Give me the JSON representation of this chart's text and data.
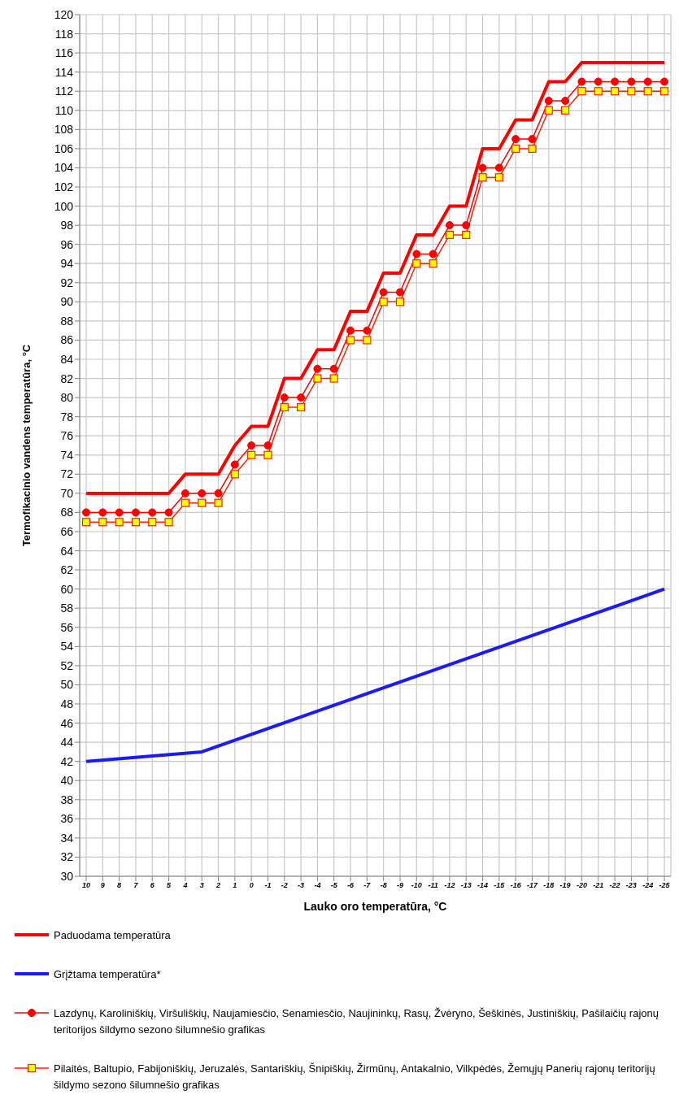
{
  "chart_data": {
    "type": "line",
    "xlabel": "Lauko oro temperatūra, °C",
    "ylabel": "Termofikacinio vandens temperatūra, °C",
    "categories": [
      "10",
      "9",
      "8",
      "7",
      "6",
      "5",
      "4",
      "3",
      "2",
      "1",
      "0",
      "-1",
      "-2",
      "-3",
      "-4",
      "-5",
      "-6",
      "-7",
      "-8",
      "-9",
      "-10",
      "-11",
      "-12",
      "-13",
      "-14",
      "-15",
      "-16",
      "-17",
      "-18",
      "-19",
      "-20",
      "-21",
      "-22",
      "-23",
      "-24",
      "-25"
    ],
    "series": [
      {
        "name": "Paduodama temperatūra",
        "color": "#ff0000",
        "marker": "none",
        "values": [
          70,
          70,
          70,
          70,
          70,
          70,
          72,
          72,
          72,
          75,
          77,
          77,
          82,
          82,
          85,
          85,
          89,
          89,
          93,
          93,
          97,
          97,
          100,
          100,
          106,
          106,
          109,
          109,
          113,
          113,
          115,
          115,
          115,
          115,
          115,
          115
        ]
      },
      {
        "name": "Grįžtama temperatūra*",
        "color": "#1a1aff",
        "marker": "none",
        "values": [
          42,
          null,
          null,
          null,
          null,
          null,
          null,
          43,
          null,
          null,
          null,
          null,
          null,
          null,
          null,
          null,
          null,
          null,
          null,
          null,
          null,
          null,
          null,
          null,
          null,
          null,
          null,
          null,
          null,
          null,
          null,
          null,
          null,
          null,
          null,
          60
        ]
      },
      {
        "name": "Lazdynų, Karoliniškių, Viršuliškių, Naujamiesčio, Senamiesčio, Naujininkų, Rasų, Žvėryno, Šeškinės, Justiniškių, Pašilaičių rajonų teritorijos šildymo sezono šilumnešio grafikas",
        "color": "#ff0000",
        "marker": "circle",
        "values": [
          68,
          68,
          68,
          68,
          68,
          68,
          70,
          70,
          70,
          73,
          75,
          75,
          80,
          80,
          83,
          83,
          87,
          87,
          91,
          91,
          95,
          95,
          98,
          98,
          104,
          104,
          107,
          107,
          111,
          111,
          113,
          113,
          113,
          113,
          113,
          113
        ]
      },
      {
        "name": "Pilaitės, Baltupio, Fabijoniškių, Jeruzalės, Santariškių, Šnipiškių, Žirmūnų, Antakalnio, Vilkpėdės, Žemųjų Panerių rajonų teritorijų šildymo sezono šilumnešio grafikas",
        "color": "#ffff00",
        "marker": "square",
        "values": [
          67,
          67,
          67,
          67,
          67,
          67,
          69,
          69,
          69,
          72,
          74,
          74,
          79,
          79,
          82,
          82,
          86,
          86,
          90,
          90,
          94,
          94,
          97,
          97,
          103,
          103,
          106,
          106,
          110,
          110,
          112,
          112,
          112,
          112,
          112,
          112
        ]
      }
    ],
    "ylim": [
      30,
      120
    ],
    "yticks": [
      30,
      32,
      34,
      36,
      38,
      40,
      42,
      44,
      46,
      48,
      50,
      52,
      54,
      56,
      58,
      60,
      62,
      64,
      66,
      68,
      70,
      72,
      74,
      76,
      78,
      80,
      82,
      84,
      86,
      88,
      90,
      92,
      94,
      96,
      98,
      100,
      102,
      104,
      106,
      108,
      110,
      112,
      114,
      116,
      118,
      120
    ],
    "grid": true,
    "legend": "bottom"
  }
}
